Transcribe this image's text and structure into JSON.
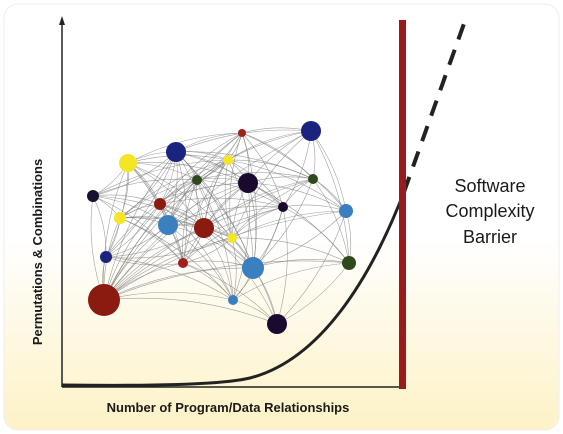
{
  "axis_labels": {
    "y": "Permutations & Combinations",
    "x": "Number of Program/Data Relationships"
  },
  "barrier_label": [
    "Software",
    "Complexity",
    "Barrier"
  ]
}
